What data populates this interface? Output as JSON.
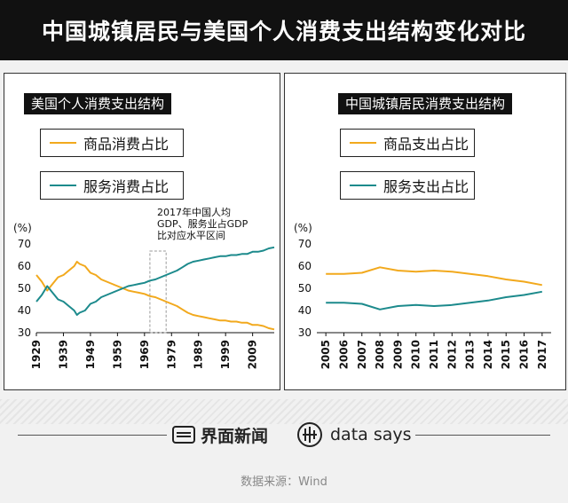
{
  "title": "中国城镇居民与美国个人消费支出结构变化对比",
  "colors": {
    "goods": "#f2a91d",
    "services": "#1c8a8c",
    "band": "#999999"
  },
  "left_panel": {
    "title": "美国个人消费支出结构",
    "legend": {
      "goods": "商品消费占比",
      "services": "服务消费占比"
    },
    "annotation": [
      "2017年中国人均",
      "GDP、服务业占GDP",
      "比对应水平区间"
    ]
  },
  "right_panel": {
    "title": "中国城镇居民消费支出结构",
    "legend": {
      "goods": "商品支出占比",
      "services": "服务支出占比"
    }
  },
  "chart_data": [
    {
      "type": "line",
      "title": "美国个人消费支出结构",
      "ylabel": "(%)",
      "ylim": [
        30,
        70
      ],
      "yticks": [
        30,
        40,
        50,
        60,
        70
      ],
      "xlim": [
        1929,
        2017
      ],
      "xticks": [
        "1929",
        "1939",
        "1949",
        "1959",
        "1969",
        "1979",
        "1989",
        "1999",
        "2009"
      ],
      "band": [
        1971,
        1977
      ],
      "series": [
        {
          "name": "商品消费占比",
          "x": [
            1929,
            1931,
            1933,
            1935,
            1937,
            1939,
            1941,
            1943,
            1944,
            1945,
            1947,
            1949,
            1951,
            1953,
            1955,
            1957,
            1959,
            1961,
            1963,
            1965,
            1967,
            1969,
            1971,
            1973,
            1975,
            1977,
            1979,
            1981,
            1983,
            1985,
            1987,
            1989,
            1991,
            1993,
            1995,
            1997,
            1999,
            2001,
            2003,
            2005,
            2007,
            2009,
            2011,
            2013,
            2015,
            2017
          ],
          "values": [
            56,
            53,
            49,
            52,
            55,
            56,
            58,
            60,
            62,
            61,
            60,
            57,
            56,
            54,
            53,
            52,
            51,
            50,
            49,
            48.5,
            48,
            47.5,
            46.5,
            46,
            45,
            44,
            43,
            42,
            40.5,
            39,
            38,
            37.5,
            37,
            36.5,
            36,
            35.5,
            35.5,
            35,
            35,
            34.5,
            34.5,
            33.5,
            33.5,
            33,
            32,
            31.5
          ]
        },
        {
          "name": "服务消费占比",
          "x": [
            1929,
            1931,
            1933,
            1935,
            1937,
            1939,
            1941,
            1943,
            1944,
            1945,
            1947,
            1949,
            1951,
            1953,
            1955,
            1957,
            1959,
            1961,
            1963,
            1965,
            1967,
            1969,
            1971,
            1973,
            1975,
            1977,
            1979,
            1981,
            1983,
            1985,
            1987,
            1989,
            1991,
            1993,
            1995,
            1997,
            1999,
            2001,
            2003,
            2005,
            2007,
            2009,
            2011,
            2013,
            2015,
            2017
          ],
          "values": [
            44,
            47,
            51,
            48,
            45,
            44,
            42,
            40,
            38,
            39,
            40,
            43,
            44,
            46,
            47,
            48,
            49,
            50,
            51,
            51.5,
            52,
            52.5,
            53.5,
            54,
            55,
            56,
            57,
            58,
            59.5,
            61,
            62,
            62.5,
            63,
            63.5,
            64,
            64.5,
            64.5,
            65,
            65,
            65.5,
            65.5,
            66.5,
            66.5,
            67,
            68,
            68.5
          ]
        }
      ]
    },
    {
      "type": "line",
      "title": "中国城镇居民消费支出结构",
      "ylabel": "(%)",
      "ylim": [
        30,
        70
      ],
      "yticks": [
        30,
        40,
        50,
        60,
        70
      ],
      "categories": [
        "2005",
        "2006",
        "2007",
        "2008",
        "2009",
        "2010",
        "2011",
        "2012",
        "2013",
        "2014",
        "2015",
        "2016",
        "2017"
      ],
      "series": [
        {
          "name": "商品支出占比",
          "values": [
            56.5,
            56.5,
            57,
            59.5,
            58,
            57.5,
            58,
            57.5,
            56.5,
            55.5,
            54,
            53,
            51.5
          ]
        },
        {
          "name": "服务支出占比",
          "values": [
            43.5,
            43.5,
            43,
            40.5,
            42,
            42.5,
            42,
            42.5,
            43.5,
            44.5,
            46,
            47,
            48.5
          ]
        }
      ]
    }
  ],
  "footer": {
    "brand_cn": "界面新闻",
    "brand_en": "data says",
    "source": "数据来源：Wind"
  }
}
